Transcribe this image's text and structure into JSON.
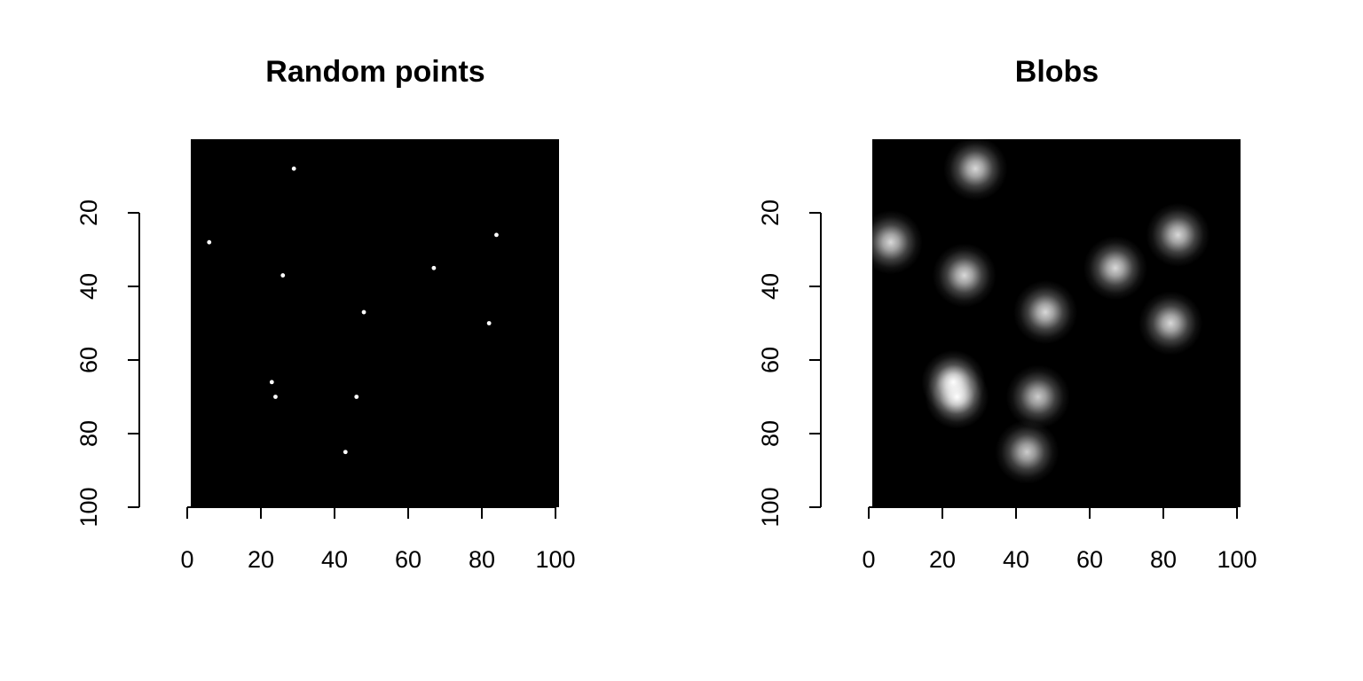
{
  "chart_data": [
    {
      "type": "scatter",
      "title": "Random points",
      "xlabel": "",
      "ylabel": "",
      "xlim": [
        0,
        100
      ],
      "ylim": [
        0,
        100
      ],
      "y_axis_reversed": true,
      "grid": false,
      "background": "#000000",
      "point_color": "#ffffff",
      "x_ticks": [
        0,
        20,
        40,
        60,
        80,
        100
      ],
      "y_ticks": [
        20,
        40,
        60,
        80,
        100
      ],
      "points": [
        {
          "x": 28,
          "y": 8
        },
        {
          "x": 5,
          "y": 28
        },
        {
          "x": 83,
          "y": 26
        },
        {
          "x": 25,
          "y": 37
        },
        {
          "x": 66,
          "y": 35
        },
        {
          "x": 47,
          "y": 47
        },
        {
          "x": 81,
          "y": 50
        },
        {
          "x": 22,
          "y": 66
        },
        {
          "x": 23,
          "y": 70
        },
        {
          "x": 45,
          "y": 70
        },
        {
          "x": 42,
          "y": 85
        }
      ]
    },
    {
      "type": "heatmap",
      "title": "Blobs",
      "xlabel": "",
      "ylabel": "",
      "xlim": [
        0,
        100
      ],
      "ylim": [
        0,
        100
      ],
      "y_axis_reversed": true,
      "grid": false,
      "background": "#000000",
      "colormap": "grayscale",
      "x_ticks": [
        0,
        20,
        40,
        60,
        80,
        100
      ],
      "y_ticks": [
        20,
        40,
        60,
        80,
        100
      ],
      "blobs": [
        {
          "x": 28,
          "y": 8,
          "intensity": 0.85
        },
        {
          "x": 5,
          "y": 28,
          "intensity": 0.85
        },
        {
          "x": 83,
          "y": 26,
          "intensity": 0.85
        },
        {
          "x": 25,
          "y": 37,
          "intensity": 0.85
        },
        {
          "x": 66,
          "y": 35,
          "intensity": 0.85
        },
        {
          "x": 47,
          "y": 47,
          "intensity": 0.85
        },
        {
          "x": 81,
          "y": 50,
          "intensity": 0.85
        },
        {
          "x": 22,
          "y": 66,
          "intensity": 1.0
        },
        {
          "x": 23,
          "y": 70,
          "intensity": 1.0
        },
        {
          "x": 45,
          "y": 70,
          "intensity": 0.8
        },
        {
          "x": 42,
          "y": 85,
          "intensity": 0.8
        }
      ]
    }
  ]
}
